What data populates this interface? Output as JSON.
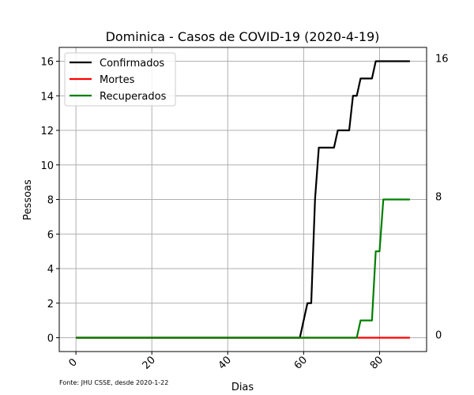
{
  "chart_data": {
    "type": "line",
    "title": "Dominica - Casos de COVID-19 (2020-4-19)",
    "xlabel": "Dias",
    "ylabel": "Pessoas",
    "xlim": [
      -4.4,
      92.4
    ],
    "ylim": [
      -0.8,
      16.8
    ],
    "xticks": [
      0,
      20,
      40,
      60,
      80
    ],
    "yticks": [
      0,
      2,
      4,
      6,
      8,
      10,
      12,
      14,
      16
    ],
    "grid": true,
    "legend_position": "upper-left",
    "right_labels": [
      "16",
      "8",
      "0"
    ],
    "right_label_values": [
      16,
      8,
      0
    ],
    "source_note": "Fonte: JHU CSSE, desde 2020-1-22",
    "series": [
      {
        "name": "Confirmados",
        "color": "#000000",
        "points": [
          [
            0,
            0
          ],
          [
            59,
            0
          ],
          [
            61,
            2
          ],
          [
            62,
            2
          ],
          [
            63,
            8
          ],
          [
            64,
            11
          ],
          [
            68,
            11
          ],
          [
            69,
            12
          ],
          [
            72,
            12
          ],
          [
            73,
            14
          ],
          [
            74,
            14
          ],
          [
            75,
            15
          ],
          [
            78,
            15
          ],
          [
            79,
            16
          ],
          [
            88,
            16
          ]
        ]
      },
      {
        "name": "Mortes",
        "color": "#ff0000",
        "points": [
          [
            0,
            0
          ],
          [
            88,
            0
          ]
        ]
      },
      {
        "name": "Recuperados",
        "color": "#008000",
        "points": [
          [
            0,
            0
          ],
          [
            74,
            0
          ],
          [
            75,
            1
          ],
          [
            78,
            1
          ],
          [
            79,
            5
          ],
          [
            80,
            5
          ],
          [
            81,
            8
          ],
          [
            88,
            8
          ]
        ]
      }
    ]
  }
}
